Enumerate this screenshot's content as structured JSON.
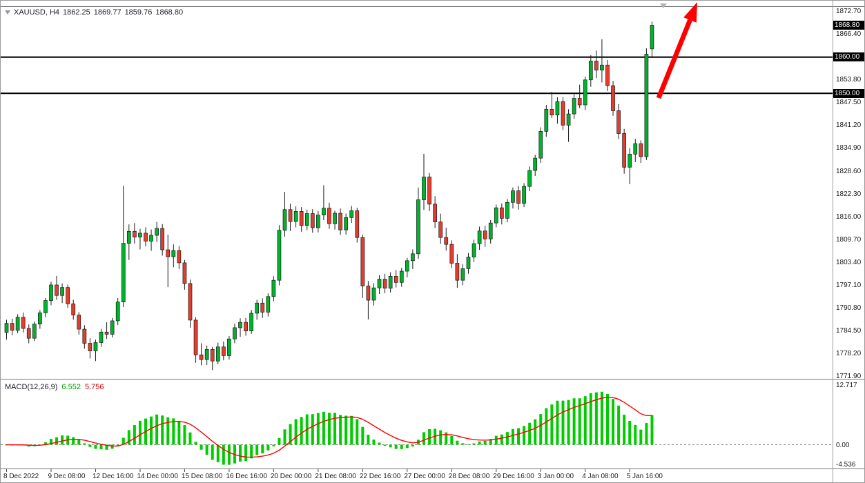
{
  "header": {
    "symbol_tf": "XAUUSD, H4",
    "open": "1862.25",
    "high": "1869.77",
    "low": "1859.76",
    "close": "1868.80"
  },
  "macd": {
    "title": "MACD(12,26,9)",
    "main": "6.552",
    "signal": "5.756"
  },
  "price_axis": {
    "ticks": [
      "1872.70",
      "1866.40",
      "1853.80",
      "1847.50",
      "1841.20",
      "1834.90",
      "1828.60",
      "1822.30",
      "1816.00",
      "1809.70",
      "1803.40",
      "1797.10",
      "1790.80",
      "1784.50",
      "1778.20",
      "1771.90"
    ],
    "boxes": {
      "current": "1868.80",
      "line1": "1860.00",
      "line2": "1850.00"
    }
  },
  "macd_axis": {
    "max": "12.717",
    "zero": "0.00",
    "min": "-4.536"
  },
  "colors": {
    "background": "#ffffff",
    "bull": "#00b22d",
    "bear": "#e23d2e",
    "candle_outline": "#1a1a1a",
    "hline": "#000000",
    "arrow": "#ff0000",
    "macd_histogram": "#00cc00",
    "macd_signal": "#ff0000",
    "price_box_bg": "#000000",
    "price_box_text": "#ffffff",
    "axis_text": "#1a1a1a",
    "frame": "#777777"
  },
  "chart_data": [
    {
      "type": "candlestick",
      "title": "XAUUSD, H4",
      "symbol": "XAUUSD",
      "timeframe": "H4",
      "current_bar": {
        "open": 1862.25,
        "high": 1869.77,
        "low": 1859.76,
        "close": 1868.8
      },
      "y_axis": {
        "side": "right",
        "range": [
          1771.9,
          1872.7
        ],
        "tick_step": 6.3
      },
      "x_axis_labels": [
        "8 Dec 2022",
        "9 Dec 08:00",
        "12 Dec 16:00",
        "14 Dec 00:00",
        "15 Dec 08:00",
        "16 Dec 16:00",
        "20 Dec 00:00",
        "21 Dec 08:00",
        "22 Dec 16:00",
        "27 Dec 00:00",
        "28 Dec 08:00",
        "29 Dec 16:00",
        "3 Jan 00:00",
        "4 Jan 08:00",
        "5 Jan 16:00"
      ],
      "bars_per_label": 8,
      "grid": false,
      "horizontal_lines": [
        {
          "price": 1860.0
        },
        {
          "price": 1850.0
        }
      ],
      "annotations": [
        {
          "type": "arrow",
          "direction": "up",
          "color": "#ff0000",
          "position": "above last candles, pointing to upper right"
        }
      ],
      "candles_ohlc": [
        [
          1784.0,
          1787.5,
          1782.0,
          1786.5
        ],
        [
          1786.5,
          1787.8,
          1783.2,
          1784.6
        ],
        [
          1784.6,
          1789.0,
          1783.8,
          1788.2
        ],
        [
          1788.2,
          1789.5,
          1784.0,
          1785.1
        ],
        [
          1785.1,
          1786.2,
          1781.0,
          1782.4
        ],
        [
          1782.4,
          1787.0,
          1781.6,
          1786.3
        ],
        [
          1786.3,
          1790.2,
          1785.0,
          1789.4
        ],
        [
          1789.4,
          1793.5,
          1788.2,
          1792.8
        ],
        [
          1792.8,
          1798.0,
          1791.5,
          1797.1
        ],
        [
          1797.1,
          1799.6,
          1793.0,
          1794.2
        ],
        [
          1794.2,
          1797.5,
          1792.1,
          1796.4
        ],
        [
          1796.4,
          1797.2,
          1790.8,
          1791.9
        ],
        [
          1791.9,
          1793.0,
          1787.5,
          1788.8
        ],
        [
          1788.8,
          1789.6,
          1783.4,
          1784.9
        ],
        [
          1784.9,
          1786.0,
          1779.5,
          1781.0
        ],
        [
          1781.0,
          1782.4,
          1776.8,
          1778.9
        ],
        [
          1778.9,
          1782.0,
          1776.1,
          1781.2
        ],
        [
          1781.2,
          1785.0,
          1780.0,
          1784.1
        ],
        [
          1784.1,
          1786.8,
          1782.2,
          1783.5
        ],
        [
          1783.5,
          1788.0,
          1782.6,
          1787.2
        ],
        [
          1787.2,
          1793.5,
          1786.0,
          1792.4
        ],
        [
          1792.4,
          1824.5,
          1791.0,
          1808.6
        ],
        [
          1808.6,
          1813.8,
          1804.0,
          1811.9
        ],
        [
          1811.9,
          1814.2,
          1808.5,
          1810.3
        ],
        [
          1810.3,
          1812.6,
          1806.9,
          1811.4
        ],
        [
          1811.4,
          1813.0,
          1807.8,
          1809.2
        ],
        [
          1809.2,
          1812.4,
          1806.5,
          1810.8
        ],
        [
          1810.8,
          1814.5,
          1809.0,
          1812.7
        ],
        [
          1812.7,
          1813.9,
          1805.2,
          1806.8
        ],
        [
          1806.8,
          1811.0,
          1796.5,
          1804.9
        ],
        [
          1804.9,
          1808.3,
          1802.0,
          1806.6
        ],
        [
          1806.6,
          1807.8,
          1801.5,
          1803.2
        ],
        [
          1803.2,
          1804.0,
          1795.8,
          1797.5
        ],
        [
          1797.5,
          1798.6,
          1785.3,
          1787.4
        ],
        [
          1787.4,
          1788.2,
          1775.6,
          1777.8
        ],
        [
          1777.8,
          1781.0,
          1774.9,
          1776.5
        ],
        [
          1776.5,
          1780.4,
          1775.0,
          1779.3
        ],
        [
          1779.3,
          1780.0,
          1773.6,
          1776.1
        ],
        [
          1776.1,
          1781.2,
          1775.2,
          1780.0
        ],
        [
          1780.0,
          1781.5,
          1776.3,
          1777.6
        ],
        [
          1777.6,
          1783.0,
          1776.5,
          1782.2
        ],
        [
          1782.2,
          1786.4,
          1781.0,
          1785.3
        ],
        [
          1785.3,
          1787.9,
          1782.8,
          1786.8
        ],
        [
          1786.8,
          1788.0,
          1783.1,
          1784.4
        ],
        [
          1784.4,
          1790.2,
          1783.6,
          1789.3
        ],
        [
          1789.3,
          1793.0,
          1787.5,
          1792.1
        ],
        [
          1792.1,
          1793.4,
          1788.0,
          1789.6
        ],
        [
          1789.6,
          1794.8,
          1788.4,
          1793.9
        ],
        [
          1793.9,
          1799.5,
          1792.6,
          1798.4
        ],
        [
          1798.4,
          1813.6,
          1797.0,
          1812.2
        ],
        [
          1812.2,
          1822.8,
          1810.4,
          1817.9
        ],
        [
          1817.9,
          1819.5,
          1812.0,
          1814.6
        ],
        [
          1814.6,
          1818.8,
          1813.0,
          1817.4
        ],
        [
          1817.4,
          1818.6,
          1811.8,
          1813.5
        ],
        [
          1813.5,
          1817.9,
          1812.2,
          1816.8
        ],
        [
          1816.8,
          1818.0,
          1811.5,
          1812.9
        ],
        [
          1812.9,
          1817.5,
          1811.6,
          1816.4
        ],
        [
          1816.4,
          1824.6,
          1815.0,
          1818.3
        ],
        [
          1818.3,
          1819.8,
          1812.6,
          1814.0
        ],
        [
          1814.0,
          1817.6,
          1812.4,
          1816.9
        ],
        [
          1816.9,
          1818.2,
          1810.9,
          1812.3
        ],
        [
          1812.3,
          1816.8,
          1811.0,
          1815.7
        ],
        [
          1815.7,
          1818.9,
          1814.2,
          1817.6
        ],
        [
          1817.6,
          1818.4,
          1808.8,
          1810.2
        ],
        [
          1810.2,
          1811.0,
          1793.5,
          1796.8
        ],
        [
          1796.8,
          1798.2,
          1787.6,
          1792.9
        ],
        [
          1792.9,
          1797.6,
          1791.4,
          1796.3
        ],
        [
          1796.3,
          1799.8,
          1794.6,
          1798.7
        ],
        [
          1798.7,
          1800.2,
          1794.8,
          1796.2
        ],
        [
          1796.2,
          1800.6,
          1795.0,
          1799.5
        ],
        [
          1799.5,
          1801.2,
          1796.4,
          1797.8
        ],
        [
          1797.8,
          1801.8,
          1796.6,
          1800.9
        ],
        [
          1800.9,
          1804.6,
          1799.2,
          1803.8
        ],
        [
          1803.8,
          1806.9,
          1801.5,
          1805.7
        ],
        [
          1805.7,
          1824.0,
          1804.3,
          1820.6
        ],
        [
          1820.6,
          1833.3,
          1817.8,
          1826.9
        ],
        [
          1826.9,
          1828.0,
          1817.5,
          1819.4
        ],
        [
          1819.4,
          1821.6,
          1812.8,
          1814.5
        ],
        [
          1814.5,
          1816.8,
          1808.4,
          1810.2
        ],
        [
          1810.2,
          1812.9,
          1806.6,
          1808.3
        ],
        [
          1808.3,
          1809.4,
          1801.8,
          1803.1
        ],
        [
          1803.1,
          1805.6,
          1796.3,
          1798.4
        ],
        [
          1798.4,
          1802.8,
          1797.0,
          1801.6
        ],
        [
          1801.6,
          1805.9,
          1800.2,
          1804.8
        ],
        [
          1804.8,
          1809.6,
          1803.4,
          1808.5
        ],
        [
          1808.5,
          1813.2,
          1806.8,
          1812.0
        ],
        [
          1812.0,
          1813.4,
          1807.6,
          1809.8
        ],
        [
          1809.8,
          1815.0,
          1808.5,
          1814.2
        ],
        [
          1814.2,
          1819.3,
          1813.0,
          1818.4
        ],
        [
          1818.4,
          1819.6,
          1813.8,
          1815.5
        ],
        [
          1815.5,
          1820.8,
          1814.4,
          1819.9
        ],
        [
          1819.9,
          1824.0,
          1818.2,
          1823.1
        ],
        [
          1823.1,
          1824.4,
          1817.9,
          1819.6
        ],
        [
          1819.6,
          1825.2,
          1818.6,
          1824.3
        ],
        [
          1824.3,
          1829.8,
          1823.0,
          1828.7
        ],
        [
          1828.7,
          1833.0,
          1827.2,
          1832.1
        ],
        [
          1832.1,
          1840.6,
          1830.8,
          1839.5
        ],
        [
          1839.5,
          1846.8,
          1838.0,
          1845.6
        ],
        [
          1845.6,
          1850.4,
          1843.2,
          1844.0
        ],
        [
          1844.0,
          1848.9,
          1841.6,
          1847.7
        ],
        [
          1847.7,
          1849.0,
          1839.8,
          1841.2
        ],
        [
          1841.2,
          1845.6,
          1836.6,
          1844.3
        ],
        [
          1844.3,
          1849.8,
          1843.0,
          1848.6
        ],
        [
          1848.6,
          1852.4,
          1845.9,
          1846.8
        ],
        [
          1846.8,
          1854.6,
          1845.4,
          1853.7
        ],
        [
          1853.7,
          1860.5,
          1851.8,
          1858.9
        ],
        [
          1858.9,
          1861.8,
          1854.2,
          1856.4
        ],
        [
          1856.4,
          1864.9,
          1853.0,
          1857.8
        ],
        [
          1857.8,
          1859.2,
          1850.6,
          1852.1
        ],
        [
          1852.1,
          1853.4,
          1843.8,
          1845.2
        ],
        [
          1845.2,
          1847.0,
          1837.4,
          1838.9
        ],
        [
          1838.9,
          1840.2,
          1827.8,
          1829.6
        ],
        [
          1829.6,
          1834.8,
          1824.9,
          1833.2
        ],
        [
          1833.2,
          1837.4,
          1831.0,
          1836.1
        ],
        [
          1836.1,
          1837.0,
          1830.8,
          1832.5
        ],
        [
          1832.5,
          1862.4,
          1831.6,
          1860.8
        ],
        [
          1862.25,
          1869.77,
          1859.76,
          1868.8
        ]
      ]
    },
    {
      "type": "bar",
      "title": "MACD(12,26,9)",
      "params": {
        "fast_ema": 12,
        "slow_ema": 26,
        "signal": 9
      },
      "current_values": {
        "macd": 6.552,
        "signal": 5.756
      },
      "y_range": [
        -4.536,
        12.717
      ],
      "axis_labels": [
        "12.717",
        "0.00",
        "-4.536"
      ],
      "legend_position": "top-left",
      "series_note": "Green histogram = MACD line, red curve = signal line; both computed from the candlestick closes above"
    }
  ]
}
